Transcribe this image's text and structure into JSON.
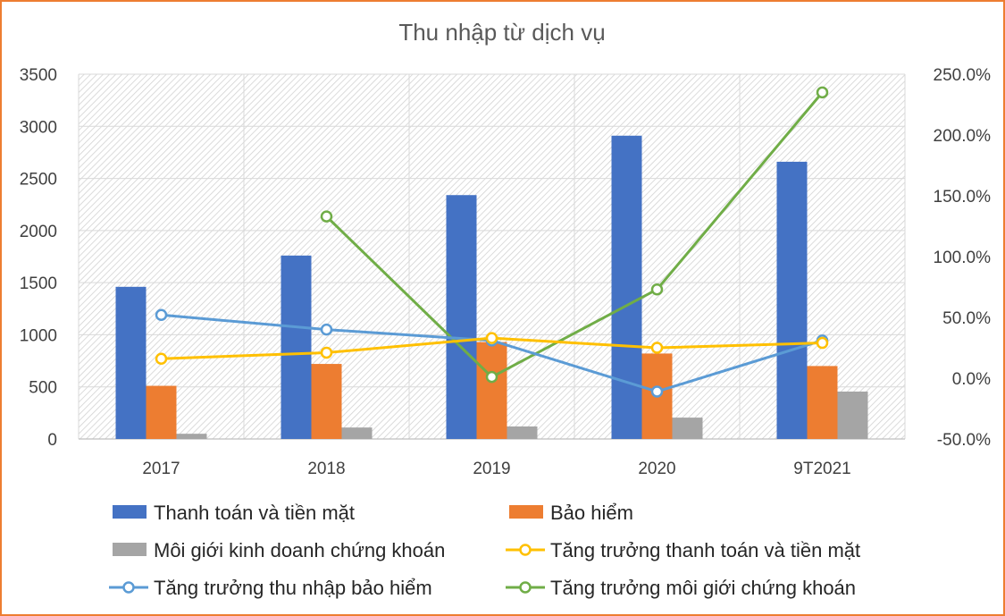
{
  "chart_data": {
    "type": "bar",
    "title": "Thu nhập từ dịch vụ",
    "xlabel": "",
    "ylabel": "",
    "categories": [
      "2017",
      "2018",
      "2019",
      "2020",
      "9T2021"
    ],
    "ylim": [
      0,
      3500
    ],
    "yticks": [
      "0",
      "500",
      "1000",
      "1500",
      "2000",
      "2500",
      "3000",
      "3500"
    ],
    "y2lim": [
      -0.5,
      2.5
    ],
    "y2ticks": [
      "-50.0%",
      "0.0%",
      "50.0%",
      "100.0%",
      "150.0%",
      "200.0%",
      "250.0%"
    ],
    "grid": true,
    "legend_position": "bottom",
    "series": [
      {
        "name": "Thanh toán và tiền mặt",
        "type": "bar",
        "axis": "left",
        "color": "#4472C4",
        "values": [
          1460,
          1760,
          2340,
          2910,
          2660
        ]
      },
      {
        "name": "Bảo hiểm",
        "type": "bar",
        "axis": "left",
        "color": "#ED7D31",
        "values": [
          510,
          720,
          930,
          820,
          700
        ]
      },
      {
        "name": "Môi giới kinh doanh chứng khoán",
        "type": "bar",
        "axis": "left",
        "color": "#A5A5A5",
        "values": [
          50,
          110,
          120,
          205,
          455
        ]
      },
      {
        "name": "Tăng trưởng thanh toán và tiền mặt",
        "type": "line",
        "axis": "right",
        "color": "#FFC000",
        "values": [
          0.16,
          0.21,
          0.33,
          0.25,
          0.29
        ]
      },
      {
        "name": "Tăng trưởng thu nhập bảo hiểm",
        "type": "line",
        "axis": "right",
        "color": "#5B9BD5",
        "values": [
          0.52,
          0.4,
          0.31,
          -0.11,
          0.31
        ]
      },
      {
        "name": "Tăng trưởng môi giới chứng khoán",
        "type": "line",
        "axis": "right",
        "color": "#70AD47",
        "values": [
          null,
          1.33,
          0.01,
          0.73,
          2.35
        ]
      }
    ]
  }
}
